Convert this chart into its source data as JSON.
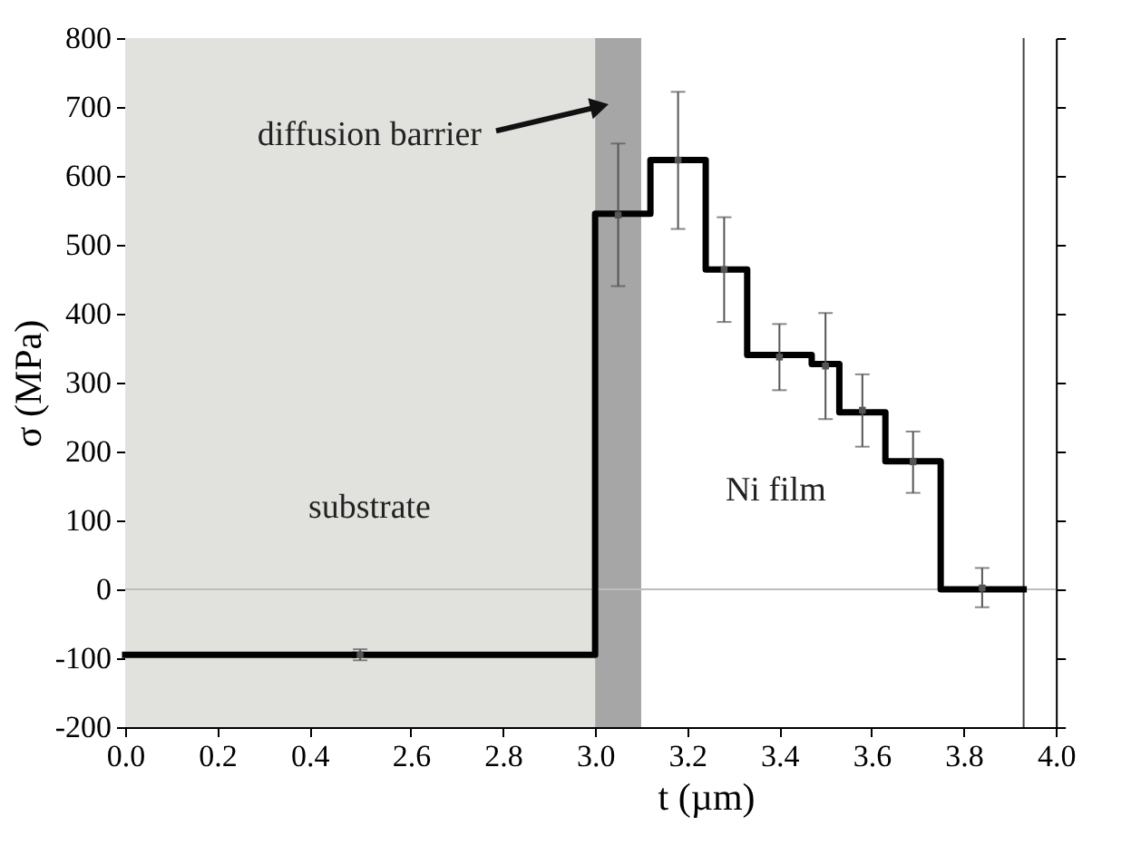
{
  "chart_data": [
    {
      "type": "step",
      "ylabel": "σ (MPa)",
      "xlim": [
        0,
        0.5
      ],
      "xticks": [
        {
          "value": 0,
          "label": "0.0"
        },
        0.2,
        0.4
      ],
      "ylim": [
        -200,
        800
      ],
      "yticks": [
        -200,
        -100,
        0,
        100,
        200,
        300,
        400,
        500,
        600,
        700,
        800
      ],
      "x": [
        0,
        0.5
      ],
      "series": [
        {
          "color": "#000000",
          "values": [
            -95,
            -95
          ]
        }
      ],
      "bands": [
        {
          "axis": "x",
          "from": 0,
          "to": 0.5,
          "color": "#e1e1dd"
        }
      ],
      "ref_lines": [
        {
          "axis": "y",
          "value": 0,
          "color": "#bdbdbd"
        }
      ]
    },
    {
      "type": "step",
      "xlabel": "t (µm)",
      "xlim": [
        2.48,
        4.0
      ],
      "xticks": [
        2.6,
        2.8,
        {
          "value": 3,
          "label": "3.0"
        },
        3.2,
        3.4,
        3.6,
        3.8,
        {
          "value": 4,
          "label": "4.0"
        }
      ],
      "ylim": [
        -200,
        800
      ],
      "yticks": [
        -200,
        -100,
        0,
        100,
        200,
        300,
        400,
        500,
        600,
        700,
        800
      ],
      "tick_labels": "x",
      "series": [
        {
          "color": "#000000",
          "x": [
            2.48,
            3.0,
            3.12,
            3.24,
            3.33,
            3.47,
            3.53,
            3.63,
            3.75,
            3.93
          ],
          "values": [
            -95,
            545,
            623,
            464,
            340,
            327,
            257,
            186,
            0,
            0
          ]
        },
        {
          "type": "scatter",
          "marker": "square",
          "color": "#555555",
          "x": [
            2.49,
            3.05,
            3.18,
            3.28,
            3.4,
            3.5,
            3.58,
            3.69,
            3.84
          ],
          "values": [
            -95,
            543,
            623,
            464,
            337,
            324,
            260,
            185,
            2
          ],
          "errors": [
            [
              -103,
              -87
            ],
            [
              440,
              647
            ],
            [
              523,
              722
            ],
            [
              388,
              540
            ],
            [
              289,
              385
            ],
            [
              247,
              401
            ],
            [
              207,
              312
            ],
            [
              140,
              229
            ],
            [
              -26,
              31
            ]
          ]
        }
      ],
      "bands": [
        {
          "axis": "x",
          "from": 2.48,
          "to": 3.0,
          "color": "#e1e1dd"
        },
        {
          "axis": "x",
          "from": 3.0,
          "to": 3.1,
          "color": "#a6a6a6"
        }
      ],
      "ref_lines": [
        {
          "axis": "y",
          "value": 0,
          "color": "#bdbdbd"
        },
        {
          "axis": "x",
          "value": 3.93,
          "color": "#444444"
        }
      ],
      "annotations": [
        "diffusion barrier",
        "substrate",
        "Ni film"
      ]
    }
  ]
}
